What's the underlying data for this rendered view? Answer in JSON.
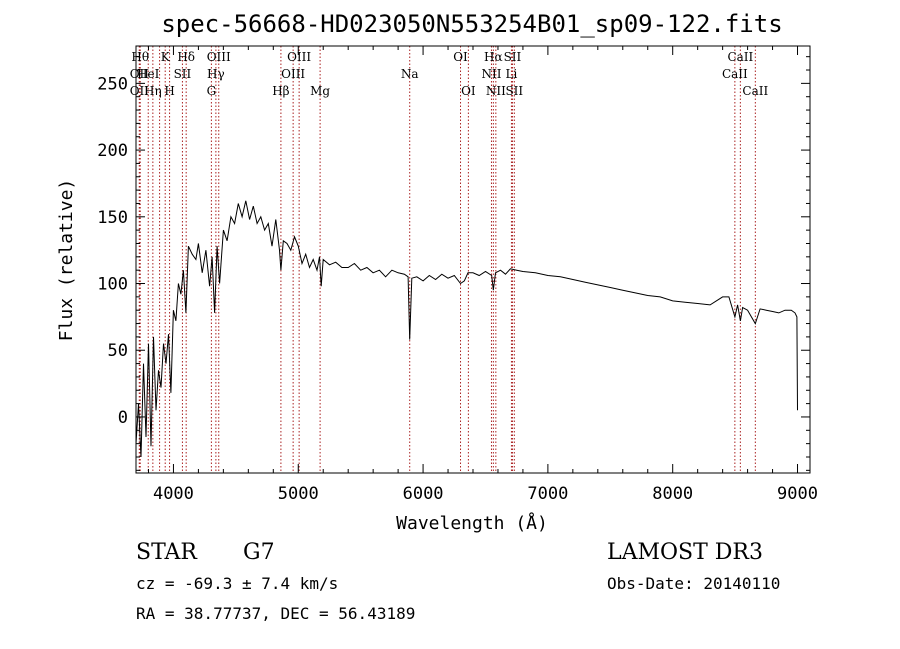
{
  "chart_data": {
    "type": "line",
    "title": "spec-56668-HD023050N553254B01_sp09-122.fits",
    "xlabel": "Wavelength (Å)",
    "ylabel": "Flux (relative)",
    "xlim": [
      3700,
      9100
    ],
    "ylim": [
      -42,
      278
    ],
    "xticks": [
      4000,
      5000,
      6000,
      7000,
      8000,
      9000
    ],
    "yticks": [
      0,
      50,
      100,
      150,
      200,
      250
    ],
    "series": [
      {
        "x": [
          3700,
          3720,
          3740,
          3760,
          3780,
          3800,
          3820,
          3840,
          3860,
          3880,
          3900,
          3920,
          3940,
          3960,
          3980,
          4000,
          4020,
          4040,
          4060,
          4080,
          4100,
          4120,
          4150,
          4180,
          4200,
          4230,
          4260,
          4290,
          4310,
          4330,
          4350,
          4370,
          4400,
          4430,
          4460,
          4490,
          4520,
          4550,
          4580,
          4610,
          4640,
          4670,
          4700,
          4730,
          4760,
          4790,
          4820,
          4850,
          4861,
          4880,
          4910,
          4940,
          4970,
          5000,
          5030,
          5060,
          5090,
          5120,
          5150,
          5170,
          5184,
          5200,
          5250,
          5300,
          5350,
          5400,
          5450,
          5500,
          5550,
          5600,
          5650,
          5700,
          5750,
          5800,
          5850,
          5880,
          5893,
          5910,
          5950,
          6000,
          6050,
          6100,
          6150,
          6200,
          6250,
          6300,
          6330,
          6360,
          6400,
          6450,
          6500,
          6550,
          6563,
          6580,
          6620,
          6660,
          6700,
          6750,
          6800,
          6900,
          7000,
          7100,
          7200,
          7300,
          7400,
          7500,
          7600,
          7700,
          7800,
          7900,
          8000,
          8100,
          8200,
          8300,
          8400,
          8450,
          8498,
          8520,
          8542,
          8560,
          8600,
          8662,
          8700,
          8750,
          8800,
          8850,
          8900,
          8950,
          8980,
          8995,
          9000
        ],
        "y": [
          -20,
          10,
          -30,
          40,
          -15,
          55,
          -22,
          60,
          5,
          35,
          22,
          55,
          40,
          62,
          18,
          80,
          72,
          100,
          92,
          110,
          78,
          128,
          122,
          118,
          130,
          108,
          125,
          98,
          120,
          78,
          128,
          100,
          140,
          132,
          150,
          145,
          160,
          150,
          162,
          148,
          158,
          145,
          150,
          140,
          145,
          128,
          148,
          125,
          110,
          132,
          130,
          125,
          135,
          128,
          115,
          122,
          112,
          118,
          110,
          120,
          98,
          118,
          114,
          116,
          112,
          112,
          115,
          110,
          112,
          108,
          110,
          105,
          110,
          108,
          107,
          105,
          58,
          104,
          105,
          102,
          106,
          103,
          107,
          104,
          106,
          100,
          102,
          108,
          108,
          106,
          109,
          106,
          95,
          108,
          110,
          107,
          111,
          110,
          109,
          108,
          106,
          105,
          103,
          101,
          99,
          97,
          95,
          93,
          91,
          90,
          87,
          86,
          85,
          84,
          90,
          90,
          75,
          84,
          72,
          82,
          80,
          70,
          81,
          80,
          79,
          78,
          80,
          80,
          78,
          75,
          5
        ]
      }
    ],
    "line_markers": [
      {
        "wl": 3734,
        "row": 0,
        "label": "Hθ"
      },
      {
        "wl": 3727,
        "row": 1,
        "label": "OII"
      },
      {
        "wl": 3727,
        "row": 2,
        "label": "OII"
      },
      {
        "wl": 3798,
        "row": 1,
        "label": "HeI"
      },
      {
        "wl": 3835,
        "row": 2,
        "label": "Hη"
      },
      {
        "wl": 3889,
        "row": 1,
        "label": ""
      },
      {
        "wl": 3934,
        "row": 0,
        "label": "K"
      },
      {
        "wl": 3969,
        "row": 2,
        "label": "H"
      },
      {
        "wl": 4072,
        "row": 1,
        "label": "SII"
      },
      {
        "wl": 4102,
        "row": 0,
        "label": "Hδ"
      },
      {
        "wl": 4304,
        "row": 2,
        "label": "G"
      },
      {
        "wl": 4340,
        "row": 1,
        "label": "Hγ"
      },
      {
        "wl": 4363,
        "row": 0,
        "label": "OIII"
      },
      {
        "wl": 4861,
        "row": 2,
        "label": "Hβ"
      },
      {
        "wl": 4959,
        "row": 1,
        "label": "OIII"
      },
      {
        "wl": 5007,
        "row": 0,
        "label": "OIII"
      },
      {
        "wl": 5175,
        "row": 2,
        "label": "Mg"
      },
      {
        "wl": 5893,
        "row": 1,
        "label": "Na"
      },
      {
        "wl": 6300,
        "row": 0,
        "label": "OI"
      },
      {
        "wl": 6363,
        "row": 2,
        "label": "OI"
      },
      {
        "wl": 6548,
        "row": 1,
        "label": "NII"
      },
      {
        "wl": 6563,
        "row": 0,
        "label": "Hα"
      },
      {
        "wl": 6583,
        "row": 2,
        "label": "NII"
      },
      {
        "wl": 6708,
        "row": 1,
        "label": "Li"
      },
      {
        "wl": 6716,
        "row": 0,
        "label": "SII"
      },
      {
        "wl": 6731,
        "row": 2,
        "label": "SII"
      },
      {
        "wl": 8498,
        "row": 1,
        "label": "CaII"
      },
      {
        "wl": 8542,
        "row": 0,
        "label": "CaII"
      },
      {
        "wl": 8662,
        "row": 2,
        "label": "CaII"
      }
    ],
    "grid": false,
    "marker_color": "#aa2222"
  },
  "info": {
    "object_type": "STAR",
    "subclass": "G7",
    "survey": "LAMOST DR3",
    "cz": "cz = -69.3 ± 7.4 km/s",
    "obs_date": "Obs-Date: 20140110",
    "coords": "RA =  38.77737, DEC =  56.43189"
  }
}
